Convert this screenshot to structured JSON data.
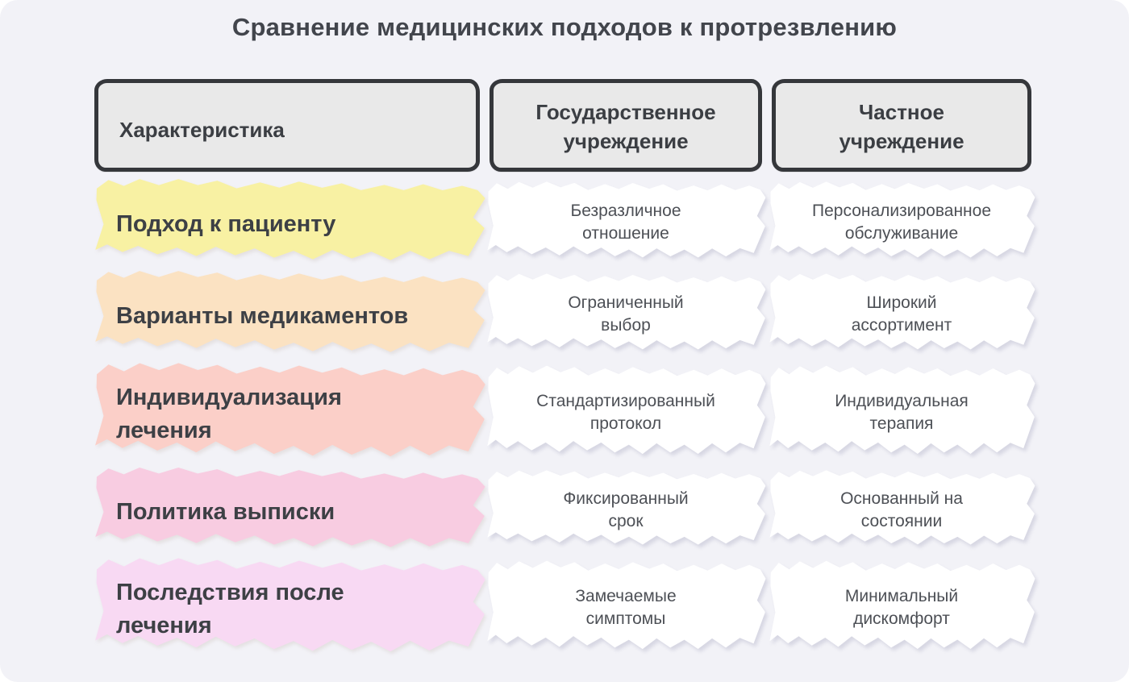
{
  "page": {
    "title": "Сравнение медицинских подходов к протрезвлению",
    "background_color": "#F2F2F7"
  },
  "table": {
    "headers": [
      {
        "label": "Характеристика"
      },
      {
        "label": "Государственное\nучреждение"
      },
      {
        "label": "Частное\nучреждение"
      }
    ],
    "rows": [
      {
        "characteristic": "Подход к пациенту",
        "state": "Безразличное\nотношение",
        "private": "Персонализированное\nобслуживание",
        "highlight_color": "#F8F1A3"
      },
      {
        "characteristic": "Варианты медикаментов",
        "state": "Ограниченный\nвыбор",
        "private": "Широкий\nассортимент",
        "highlight_color": "#FBE2C2"
      },
      {
        "characteristic": "Индивидуализация\nлечения",
        "state": "Стандартизированный\nпротокол",
        "private": "Индивидуальная\nтерапия",
        "highlight_color": "#FBCFC8"
      },
      {
        "characteristic": "Политика выписки",
        "state": "Фиксированный\nсрок",
        "private": "Основанный на\nсостоянии",
        "highlight_color": "#F8CCE1"
      },
      {
        "characteristic": "Последствия после\nлечения",
        "state": "Замечаемые\nсимптомы",
        "private": "Минимальный\nдискомфорт",
        "highlight_color": "#F8D9F3"
      }
    ]
  },
  "chart_data": {
    "type": "table",
    "title": "Сравнение медицинских подходов к протрезвлению",
    "columns": [
      "Характеристика",
      "Государственное учреждение",
      "Частное учреждение"
    ],
    "rows": [
      [
        "Подход к пациенту",
        "Безразличное отношение",
        "Персонализированное обслуживание"
      ],
      [
        "Варианты медикаментов",
        "Ограниченный выбор",
        "Широкий ассортимент"
      ],
      [
        "Индивидуализация лечения",
        "Стандартизированный протокол",
        "Индивидуальная терапия"
      ],
      [
        "Политика выписки",
        "Фиксированный срок",
        "Основанный на состоянии"
      ],
      [
        "Последствия после лечения",
        "Замечаемые симптомы",
        "Минимальный дискомфорт"
      ]
    ],
    "row_highlight_colors": [
      "#F8F1A3",
      "#FBE2C2",
      "#FBCFC8",
      "#F8CCE1",
      "#F8D9F3"
    ],
    "header_fill": "#E9E9E9",
    "header_border": "#35373B",
    "cell_fill": "#FFFFFF",
    "background": "#F2F2F7"
  }
}
